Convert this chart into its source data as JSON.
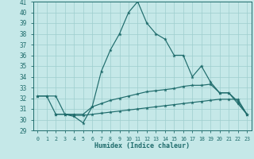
{
  "xlabel": "Humidex (Indice chaleur)",
  "background_color": "#c5e8e8",
  "grid_color": "#9ecece",
  "line_color": "#1e6b6b",
  "line1_x": [
    0,
    1,
    2,
    3,
    4,
    5,
    6,
    7,
    8,
    9,
    10,
    11,
    12,
    13,
    14,
    15,
    16,
    17,
    18,
    19,
    20,
    21,
    22,
    23
  ],
  "line1_y": [
    32.2,
    32.2,
    32.2,
    30.5,
    30.3,
    29.7,
    31.2,
    34.5,
    36.5,
    38.0,
    40.0,
    41.0,
    39.0,
    38.0,
    37.5,
    36.0,
    36.0,
    34.0,
    35.0,
    33.5,
    32.5,
    32.5,
    31.5,
    30.5
  ],
  "line2_x": [
    0,
    1,
    2,
    3,
    4,
    5,
    6,
    7,
    8,
    9,
    10,
    11,
    12,
    13,
    14,
    15,
    16,
    17,
    18,
    19,
    20,
    21,
    22,
    23
  ],
  "line2_y": [
    32.2,
    32.2,
    30.5,
    30.5,
    30.5,
    30.5,
    31.2,
    31.5,
    31.8,
    32.0,
    32.2,
    32.4,
    32.6,
    32.7,
    32.8,
    32.9,
    33.1,
    33.2,
    33.2,
    33.3,
    32.5,
    32.5,
    31.7,
    30.5
  ],
  "line3_x": [
    2,
    3,
    4,
    5,
    6,
    7,
    8,
    9,
    10,
    11,
    12,
    13,
    14,
    15,
    16,
    17,
    18,
    19,
    20,
    21,
    22,
    23
  ],
  "line3_y": [
    30.5,
    30.5,
    30.4,
    30.4,
    30.5,
    30.6,
    30.7,
    30.8,
    30.9,
    31.0,
    31.1,
    31.2,
    31.3,
    31.4,
    31.5,
    31.6,
    31.7,
    31.8,
    31.9,
    31.9,
    31.9,
    30.5
  ],
  "ylim": [
    29,
    41
  ],
  "xlim": [
    -0.5,
    23.5
  ],
  "yticks": [
    29,
    30,
    31,
    32,
    33,
    34,
    35,
    36,
    37,
    38,
    39,
    40,
    41
  ],
  "xticks": [
    0,
    1,
    2,
    3,
    4,
    5,
    6,
    7,
    8,
    9,
    10,
    11,
    12,
    13,
    14,
    15,
    16,
    17,
    18,
    19,
    20,
    21,
    22,
    23
  ]
}
